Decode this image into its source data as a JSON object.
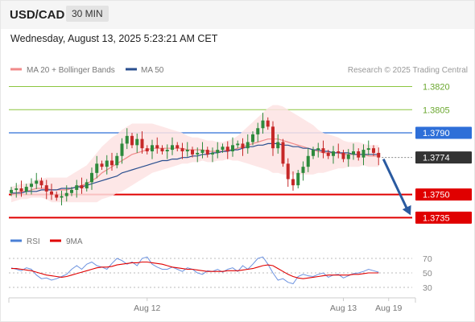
{
  "header": {
    "symbol": "USD/CAD",
    "timeframe": "30 MIN"
  },
  "datetime": "Wednesday, August 13, 2025 5:23:21 AM CET",
  "legend": {
    "bollinger": "MA 20 + Bollinger Bands",
    "ma50": "MA 50",
    "rsi": "RSI",
    "rsi_ma": "9MA"
  },
  "copyright": "Research © 2025 Trading Central",
  "chart_data": {
    "type": "candlestick",
    "price_ylim": [
      1.373,
      1.3826
    ],
    "levels": [
      {
        "label": "1.3820",
        "value": 1.382,
        "kind": "target",
        "color": "#8cc63f"
      },
      {
        "label": "1.3805",
        "value": 1.3805,
        "kind": "target",
        "color": "#8cc63f"
      },
      {
        "label": "1.3790",
        "value": 1.379,
        "kind": "pivot",
        "color": "#2e6fd8"
      },
      {
        "label": "1.3774",
        "value": 1.3774,
        "kind": "last",
        "color": "#333333"
      },
      {
        "label": "1.3750",
        "value": 1.375,
        "kind": "support",
        "color": "#e00000"
      },
      {
        "label": "1.3735",
        "value": 1.3735,
        "kind": "support",
        "color": "#e00000"
      }
    ],
    "x_labels": [
      "Aug 12",
      "Aug 13",
      "Aug 19"
    ],
    "x_label_index": [
      27,
      66,
      75
    ],
    "close": [
      1.3753,
      1.3754,
      1.3752,
      1.3755,
      1.3757,
      1.3759,
      1.3756,
      1.3752,
      1.375,
      1.3748,
      1.3749,
      1.3751,
      1.3753,
      1.3756,
      1.3754,
      1.3758,
      1.3764,
      1.377,
      1.3768,
      1.3772,
      1.3769,
      1.3775,
      1.3783,
      1.3788,
      1.3782,
      1.3786,
      1.378,
      1.3778,
      1.3782,
      1.378,
      1.3778,
      1.3779,
      1.3782,
      1.378,
      1.3778,
      1.3779,
      1.3776,
      1.3777,
      1.3779,
      1.3776,
      1.3777,
      1.3779,
      1.3781,
      1.3778,
      1.3782,
      1.3783,
      1.378,
      1.3784,
      1.3789,
      1.3793,
      1.3798,
      1.3794,
      1.378,
      1.3784,
      1.377,
      1.376,
      1.3756,
      1.3764,
      1.3768,
      1.3775,
      1.3779,
      1.378,
      1.3777,
      1.3775,
      1.3778,
      1.3777,
      1.3773,
      1.3776,
      1.3778,
      1.3774,
      1.3779,
      1.378,
      1.3777,
      1.3774
    ],
    "ma20": [
      1.375,
      1.3751,
      1.3752,
      1.3752,
      1.3753,
      1.3754,
      1.3754,
      1.3754,
      1.3753,
      1.3753,
      1.3753,
      1.3753,
      1.3754,
      1.3755,
      1.3756,
      1.3757,
      1.3759,
      1.3761,
      1.3764,
      1.3766,
      1.3768,
      1.377,
      1.3772,
      1.3774,
      1.3776,
      1.3777,
      1.3778,
      1.3779,
      1.378,
      1.378,
      1.378,
      1.378,
      1.378,
      1.378,
      1.378,
      1.3779,
      1.3779,
      1.3779,
      1.3779,
      1.3778,
      1.3778,
      1.3778,
      1.3778,
      1.3779,
      1.3779,
      1.378,
      1.3781,
      1.3782,
      1.3783,
      1.3784,
      1.3785,
      1.3786,
      1.3786,
      1.3786,
      1.3785,
      1.3784,
      1.3783,
      1.3782,
      1.3781,
      1.378,
      1.3779,
      1.3778,
      1.3777,
      1.3777,
      1.3777,
      1.3777,
      1.3776,
      1.3776,
      1.3776,
      1.3776,
      1.3776,
      1.3775,
      1.3775,
      1.3775
    ],
    "ma50": [
      1.3751,
      1.3751,
      1.3751,
      1.3752,
      1.3752,
      1.3752,
      1.3753,
      1.3753,
      1.3753,
      1.3753,
      1.3754,
      1.3754,
      1.3754,
      1.3755,
      1.3755,
      1.3756,
      1.3757,
      1.3758,
      1.3759,
      1.376,
      1.3761,
      1.3762,
      1.3764,
      1.3765,
      1.3766,
      1.3767,
      1.3768,
      1.3769,
      1.377,
      1.3771,
      1.3772,
      1.3772,
      1.3773,
      1.3773,
      1.3774,
      1.3774,
      1.3775,
      1.3775,
      1.3776,
      1.3776,
      1.3777,
      1.3777,
      1.3778,
      1.3778,
      1.3779,
      1.3779,
      1.378,
      1.3781,
      1.3781,
      1.3782,
      1.3782,
      1.3783,
      1.3783,
      1.3783,
      1.3782,
      1.3782,
      1.3781,
      1.3781,
      1.378,
      1.378,
      1.3779,
      1.3779,
      1.3778,
      1.3778,
      1.3777,
      1.3777,
      1.3777,
      1.3777,
      1.3776,
      1.3776,
      1.3776,
      1.3776,
      1.3776,
      1.3776
    ],
    "bb_width": [
      0.0005,
      0.0005,
      0.0005,
      0.0005,
      0.0005,
      0.0006,
      0.0006,
      0.0007,
      0.0008,
      0.0008,
      0.0008,
      0.0008,
      0.0009,
      0.001,
      0.0011,
      0.0012,
      0.0014,
      0.0016,
      0.0017,
      0.0018,
      0.0019,
      0.0019,
      0.002,
      0.002,
      0.002,
      0.0019,
      0.0018,
      0.0017,
      0.0016,
      0.0015,
      0.0014,
      0.0013,
      0.0012,
      0.0011,
      0.001,
      0.0009,
      0.0008,
      0.0008,
      0.0007,
      0.0007,
      0.0007,
      0.0006,
      0.0006,
      0.0006,
      0.0007,
      0.0008,
      0.001,
      0.0012,
      0.0014,
      0.0016,
      0.0018,
      0.002,
      0.0022,
      0.0022,
      0.0022,
      0.0021,
      0.002,
      0.0019,
      0.0018,
      0.0017,
      0.0016,
      0.0014,
      0.0013,
      0.0012,
      0.0011,
      0.001,
      0.0009,
      0.0008,
      0.0008,
      0.0008,
      0.0007,
      0.0007,
      0.0007,
      0.0007
    ],
    "rsi_ylim": [
      20,
      80
    ],
    "rsi_ticks": [
      70,
      50,
      30
    ],
    "rsi": [
      57,
      55,
      53,
      57,
      55,
      47,
      42,
      43,
      40,
      42,
      45,
      48,
      55,
      60,
      55,
      62,
      65,
      60,
      58,
      55,
      63,
      70,
      67,
      62,
      65,
      60,
      70,
      72,
      62,
      58,
      55,
      55,
      58,
      55,
      52,
      57,
      55,
      50,
      48,
      53,
      52,
      55,
      51,
      55,
      57,
      52,
      60,
      55,
      62,
      70,
      72,
      62,
      50,
      40,
      42,
      37,
      35,
      45,
      48,
      46,
      45,
      48,
      50,
      44,
      47,
      48,
      43,
      46,
      49,
      50,
      52,
      55,
      53,
      51
    ],
    "rsi_ma": [
      56,
      56,
      55,
      54,
      53,
      51,
      49,
      47,
      46,
      45,
      44,
      45,
      47,
      49,
      51,
      53,
      55,
      57,
      58,
      58,
      59,
      61,
      62,
      63,
      64,
      64,
      65,
      65,
      64,
      63,
      62,
      60,
      58,
      57,
      56,
      55,
      55,
      54,
      53,
      52,
      52,
      52,
      52,
      53,
      53,
      53,
      54,
      55,
      56,
      58,
      60,
      61,
      60,
      56,
      52,
      48,
      45,
      43,
      42,
      43,
      44,
      45,
      46,
      47,
      47,
      47,
      47,
      47,
      48,
      48,
      49,
      50,
      50,
      50
    ]
  }
}
